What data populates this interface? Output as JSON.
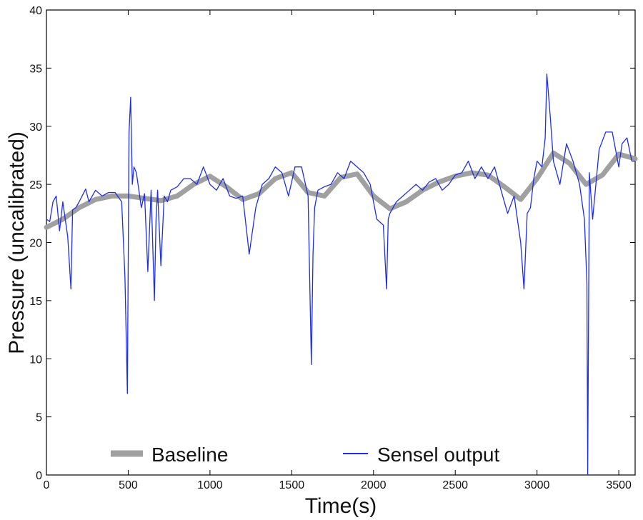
{
  "chart_data": {
    "type": "line",
    "title": "",
    "xlabel": "Time(s)",
    "ylabel": "Pressure (uncalibrated)",
    "xlim": [
      0,
      3600
    ],
    "ylim": [
      0,
      40
    ],
    "xticks": [
      0,
      500,
      1000,
      1500,
      2000,
      2500,
      3000,
      3500
    ],
    "yticks": [
      0,
      5,
      10,
      15,
      20,
      25,
      30,
      35,
      40
    ],
    "grid": false,
    "legend_position": "bottom",
    "series": [
      {
        "name": "Baseline",
        "color": "#a0a0a0",
        "x": [
          0,
          100,
          200,
          300,
          400,
          500,
          600,
          700,
          800,
          900,
          1000,
          1100,
          1200,
          1300,
          1400,
          1500,
          1600,
          1700,
          1800,
          1900,
          2000,
          2100,
          2200,
          2300,
          2400,
          2500,
          2600,
          2700,
          2800,
          2900,
          3000,
          3100,
          3200,
          3300,
          3400,
          3500,
          3600
        ],
        "y": [
          21.3,
          22.0,
          23.0,
          23.7,
          24.0,
          24.0,
          23.8,
          23.6,
          24.0,
          25.0,
          25.7,
          24.8,
          23.7,
          24.2,
          25.5,
          26.0,
          24.3,
          24.0,
          25.6,
          25.9,
          24.0,
          22.9,
          23.5,
          24.5,
          25.2,
          25.7,
          26.0,
          25.8,
          24.8,
          23.7,
          25.5,
          27.7,
          26.8,
          25.0,
          25.8,
          27.6,
          27.2
        ]
      },
      {
        "name": "Sensel output",
        "color": "#1f2ee0",
        "x": [
          0,
          20,
          40,
          60,
          80,
          100,
          115,
          130,
          150,
          160,
          180,
          200,
          240,
          260,
          280,
          300,
          340,
          380,
          420,
          460,
          480,
          495,
          505,
          515,
          525,
          535,
          550,
          580,
          600,
          620,
          640,
          660,
          670,
          680,
          700,
          720,
          740,
          760,
          800,
          840,
          880,
          920,
          960,
          1000,
          1040,
          1080,
          1120,
          1160,
          1200,
          1240,
          1280,
          1320,
          1360,
          1400,
          1440,
          1480,
          1520,
          1560,
          1600,
          1620,
          1630,
          1640,
          1660,
          1700,
          1740,
          1780,
          1820,
          1860,
          1900,
          1940,
          1980,
          2020,
          2060,
          2080,
          2090,
          2100,
          2140,
          2180,
          2220,
          2260,
          2300,
          2340,
          2380,
          2420,
          2460,
          2500,
          2540,
          2580,
          2620,
          2660,
          2700,
          2740,
          2780,
          2820,
          2860,
          2900,
          2920,
          2940,
          2960,
          2980,
          3000,
          3030,
          3050,
          3060,
          3080,
          3100,
          3140,
          3180,
          3220,
          3260,
          3290,
          3305,
          3310,
          3320,
          3340,
          3380,
          3420,
          3460,
          3500,
          3520,
          3550,
          3580,
          3600
        ],
        "y": [
          22.0,
          21.8,
          23.5,
          24.0,
          21.0,
          23.5,
          22.0,
          20.5,
          16.0,
          22.8,
          23.0,
          23.5,
          24.6,
          23.5,
          24.0,
          24.5,
          24.0,
          24.3,
          24.3,
          23.5,
          17.0,
          7.0,
          29.5,
          32.5,
          25.0,
          26.5,
          26.0,
          23.0,
          24.2,
          17.5,
          24.5,
          15.0,
          22.0,
          24.5,
          18.0,
          24.0,
          23.5,
          24.5,
          24.8,
          25.5,
          25.5,
          25.0,
          26.5,
          25.0,
          24.5,
          25.5,
          24.0,
          23.8,
          24.0,
          19.0,
          23.0,
          25.0,
          25.5,
          26.5,
          26.0,
          24.0,
          26.5,
          26.5,
          24.0,
          9.5,
          19.0,
          23.0,
          24.5,
          24.8,
          25.0,
          26.0,
          25.5,
          27.0,
          26.5,
          26.0,
          25.0,
          22.0,
          21.5,
          16.0,
          22.0,
          22.5,
          23.5,
          24.0,
          24.5,
          25.0,
          24.5,
          25.2,
          25.5,
          24.5,
          25.0,
          25.8,
          26.0,
          27.0,
          25.5,
          26.5,
          25.5,
          26.5,
          24.5,
          22.5,
          24.0,
          20.0,
          16.0,
          22.5,
          23.0,
          25.5,
          27.0,
          26.5,
          29.0,
          34.5,
          31.0,
          27.0,
          25.0,
          28.5,
          27.0,
          25.0,
          22.0,
          16.5,
          0.0,
          26.0,
          22.0,
          28.0,
          29.5,
          29.5,
          26.5,
          28.5,
          29.0,
          27.0,
          27.0
        ]
      }
    ]
  }
}
